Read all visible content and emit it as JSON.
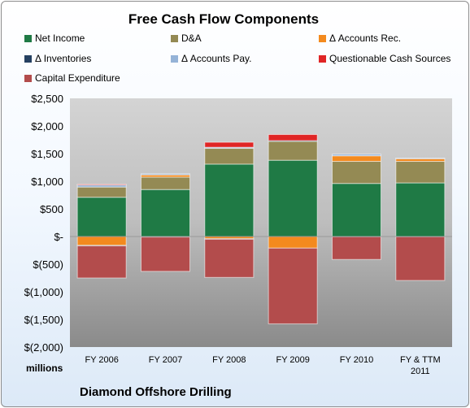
{
  "chart_data": {
    "type": "bar",
    "stacked": true,
    "title": "Free Cash Flow Components",
    "categories": [
      "FY 2006",
      "FY 2007",
      "FY 2008",
      "FY 2009",
      "FY 2010",
      "FY & TTM 2011"
    ],
    "ylabel": "millions",
    "ylim": [
      -2000,
      2500
    ],
    "yticks": [
      "$2,500",
      "$2,000",
      "$1,500",
      "$1,000",
      "$500",
      "$-",
      "$(500)",
      "$(1,000)",
      "$(1,500)",
      "$(2,000)"
    ],
    "grid": false,
    "legend_position": "top",
    "series": [
      {
        "name": "Net Income",
        "color": "#1f7a45",
        "values": [
          710,
          850,
          1310,
          1380,
          960,
          970
        ]
      },
      {
        "name": "D&A",
        "color": "#948a54",
        "values": [
          185,
          225,
          285,
          345,
          400,
          390
        ]
      },
      {
        "name": "Δ Accounts Rec.",
        "color": "#f38a1e",
        "values": [
          -160,
          40,
          -40,
          -210,
          100,
          50
        ]
      },
      {
        "name": "Δ Inventories",
        "color": "#254061",
        "values": [
          -10,
          -10,
          -10,
          10,
          -5,
          -5
        ]
      },
      {
        "name": "Δ Accounts Pay.",
        "color": "#95b3d7",
        "values": [
          40,
          20,
          20,
          0,
          30,
          10
        ]
      },
      {
        "name": "Questionable Cash Sources",
        "color": "#e02525",
        "values": [
          10,
          0,
          90,
          110,
          0,
          0
        ]
      },
      {
        "name": "Capital Expenditure",
        "color": "#b34c4c",
        "values": [
          -580,
          -620,
          -690,
          -1370,
          -410,
          -790
        ]
      }
    ]
  },
  "labels": {
    "units": "millions",
    "company": "Diamond Offshore Drilling"
  }
}
